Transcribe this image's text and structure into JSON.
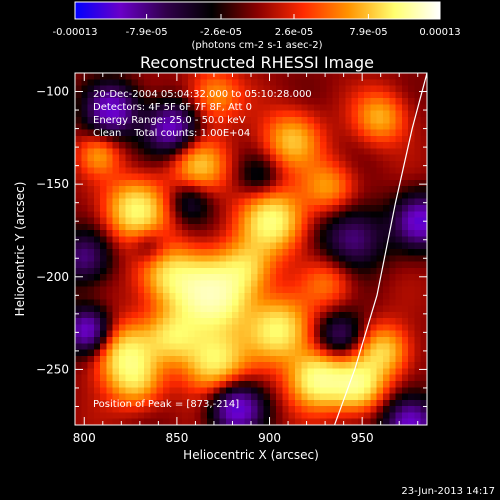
{
  "colorbar": {
    "tick_labels": [
      "-0.00013",
      "-7.9e-05",
      "-2.6e-05",
      "2.6e-05",
      "7.9e-05",
      "0.00013"
    ],
    "tick_values": [
      -0.00013,
      -7.9e-05,
      -2.6e-05,
      2.6e-05,
      7.9e-05,
      0.00013
    ],
    "unit_label": "(photons cm-2 s-1 asec-2)",
    "range": [
      -0.00013,
      0.00013
    ],
    "colors": [
      "#0000ff",
      "#6a00c8",
      "#30004a",
      "#000000",
      "#8a0000",
      "#ff2a00",
      "#ff9400",
      "#ffff70",
      "#ffffff"
    ]
  },
  "chart_data": {
    "type": "heatmap",
    "title": "Reconstructed RHESSI Image",
    "xlabel": "Heliocentric X (arcsec)",
    "ylabel": "Heliocentric Y (arcsec)",
    "x_ticks": [
      800,
      850,
      900,
      950
    ],
    "y_ticks": [
      -100,
      -150,
      -200,
      -250
    ],
    "xlim": [
      795,
      985
    ],
    "ylim": [
      -280,
      -90
    ],
    "annotation_lines": [
      "20-Dec-2004 05:04:32.000 to 05:10:28.000",
      "Detectors: 4F 5F 6F 7F 8F, Att 0",
      "Energy Range: 25.0 - 50.0 keV",
      "Clean    Total counts: 1.00E+04"
    ],
    "peak_label": "Position of Peak = [873,-214]",
    "peak": [
      873,
      -214
    ],
    "limb_curve": [
      [
        934,
        -283
      ],
      [
        946,
        -250
      ],
      [
        958,
        -210
      ],
      [
        968,
        -160
      ],
      [
        977,
        -120
      ],
      [
        985,
        -90
      ]
    ],
    "sources": [
      [
        870,
        -210,
        1.0,
        14
      ],
      [
        828,
        -164,
        0.75,
        12
      ],
      [
        845,
        -199,
        0.6,
        12
      ],
      [
        821,
        -241,
        0.7,
        12
      ],
      [
        848,
        -232,
        0.55,
        10
      ],
      [
        870,
        -246,
        0.75,
        12
      ],
      [
        902,
        -170,
        0.8,
        12
      ],
      [
        905,
        -229,
        0.75,
        12
      ],
      [
        926,
        -255,
        0.85,
        11
      ],
      [
        948,
        -259,
        0.75,
        10
      ],
      [
        962,
        -240,
        0.6,
        10
      ],
      [
        862,
        -140,
        0.55,
        11
      ],
      [
        912,
        -126,
        0.55,
        11
      ],
      [
        960,
        -114,
        0.5,
        10
      ],
      [
        870,
        -102,
        0.45,
        10
      ],
      [
        808,
        -134,
        0.4,
        8
      ],
      [
        888,
        -195,
        0.45,
        10
      ],
      [
        932,
        -203,
        0.35,
        10
      ],
      [
        932,
        -152,
        0.45,
        10
      ],
      [
        828,
        -258,
        0.45,
        10
      ],
      [
        815,
        -110,
        -0.8,
        10
      ],
      [
        847,
        -120,
        -0.8,
        10
      ],
      [
        800,
        -190,
        -0.55,
        10
      ],
      [
        802,
        -229,
        -0.85,
        9
      ],
      [
        882,
        -271,
        -0.85,
        10
      ],
      [
        857,
        -159,
        -0.4,
        8
      ],
      [
        938,
        -232,
        -0.55,
        9
      ],
      [
        945,
        -179,
        -0.6,
        12
      ],
      [
        976,
        -279,
        -0.85,
        10
      ],
      [
        982,
        -170,
        -0.8,
        10
      ],
      [
        835,
        -183,
        -0.35,
        7
      ],
      [
        895,
        -146,
        -0.3,
        8
      ]
    ]
  },
  "footer": {
    "timestamp": "23-Jun-2013 14:17"
  }
}
